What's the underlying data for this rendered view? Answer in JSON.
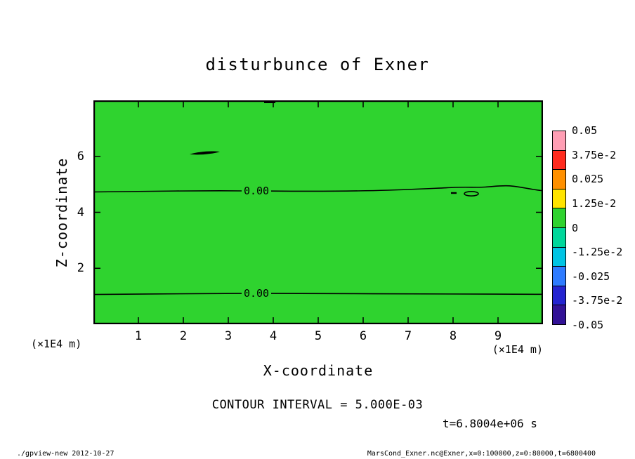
{
  "title": "disturbunce of Exner",
  "plot": {
    "bg_color": "#2fd32f",
    "contour_labels": [
      "0.00",
      "0.00"
    ]
  },
  "axes": {
    "x_label": "X-coordinate",
    "y_label": "Z-coordinate",
    "x_unit": "(×1E4 m)",
    "y_unit": "(×1E4 m)",
    "x_ticks": [
      "1",
      "2",
      "3",
      "4",
      "5",
      "6",
      "7",
      "8",
      "9"
    ],
    "y_ticks": [
      "2",
      "4",
      "6"
    ]
  },
  "colorbar": {
    "tick_labels": [
      "0.05",
      "3.75e-2",
      "0.025",
      "1.25e-2",
      "0",
      "-1.25e-2",
      "-0.025",
      "-3.75e-2",
      "-0.05"
    ],
    "colors": [
      "#ff9eb4",
      "#ff2b1e",
      "#ff9000",
      "#ffe400",
      "#2fd32f",
      "#00d79b",
      "#00c4e4",
      "#2e7bff",
      "#2424d0",
      "#321296"
    ]
  },
  "contour_interval_text": "CONTOUR INTERVAL = 5.000E-03",
  "time_text": "t=6.8004e+06 s",
  "footer": {
    "left": "./gpview-new  2012-10-27",
    "right": "MarsCond_Exner.nc@Exner,x=0:100000,z=0:80000,t=6800400"
  },
  "chart_data": {
    "type": "heatmap",
    "title": "disturbunce of Exner",
    "xlabel": "X-coordinate (×1E4 m)",
    "ylabel": "Z-coordinate (×1E4 m)",
    "x_range": [
      0,
      10
    ],
    "z_range": [
      0,
      8
    ],
    "x_tick_values": [
      1,
      2,
      3,
      4,
      5,
      6,
      7,
      8,
      9
    ],
    "z_tick_values": [
      2,
      4,
      6
    ],
    "contour_interval": 0.005,
    "colorbar_levels": [
      0.05,
      0.0375,
      0.025,
      0.0125,
      0,
      -0.0125,
      -0.025,
      -0.0375,
      -0.05
    ],
    "fill_field": "uniform near-zero (single green band across entire domain)",
    "contours": [
      {
        "level": 0.0,
        "label": "0.00",
        "shape": "near-horizontal line across full x range",
        "z_approx": 4.77
      },
      {
        "level": 0.0,
        "label": "0.00",
        "shape": "near-horizontal line across full x range",
        "z_approx": 1.1
      },
      {
        "level": 0.0,
        "shape": "small closed contour",
        "x_approx": 2.4,
        "z_approx": 6.2
      },
      {
        "level": 0.0,
        "shape": "small closed contour",
        "x_approx": 8.4,
        "z_approx": 4.7
      }
    ],
    "time_seconds": 6800400,
    "legend_position": "right colorbar"
  }
}
